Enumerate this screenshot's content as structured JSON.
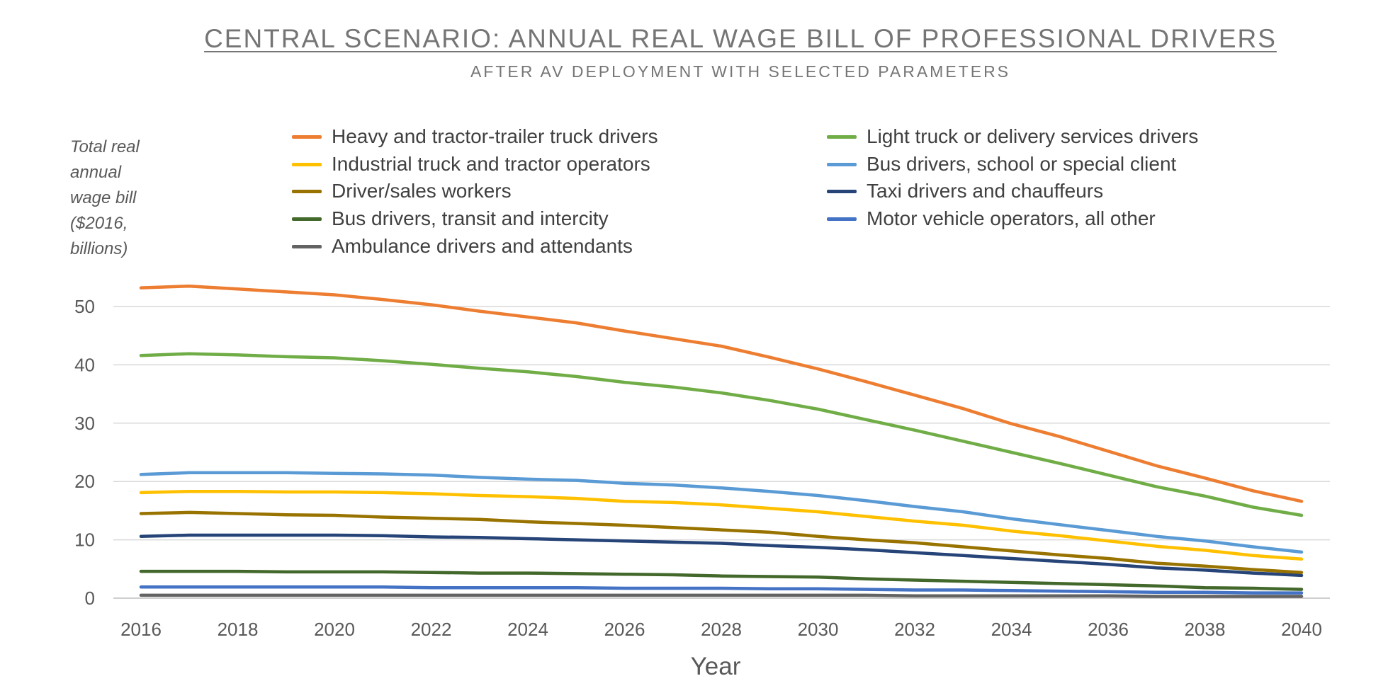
{
  "chart_data": {
    "type": "line",
    "title": "CENTRAL SCENARIO: ANNUAL REAL WAGE BILL OF PROFESSIONAL DRIVERS",
    "subtitle": "AFTER AV DEPLOYMENT WITH SELECTED PARAMETERS",
    "ylabel": "Total real annual wage bill ($2016, billions)",
    "xlabel": "Year",
    "x": [
      2016,
      2017,
      2018,
      2019,
      2020,
      2021,
      2022,
      2023,
      2024,
      2025,
      2026,
      2027,
      2028,
      2029,
      2030,
      2031,
      2032,
      2033,
      2034,
      2035,
      2036,
      2037,
      2038,
      2039,
      2040
    ],
    "x_ticks": [
      "2016",
      "2018",
      "2020",
      "2022",
      "2024",
      "2026",
      "2028",
      "2030",
      "2032",
      "2034",
      "2036",
      "2038",
      "2040"
    ],
    "y_ticks": [
      "0",
      "10",
      "20",
      "30",
      "40",
      "50"
    ],
    "ylim": [
      0,
      50
    ],
    "grid": "horizontal",
    "legend_position": "top",
    "series": [
      {
        "name": "Heavy and tractor-trailer truck drivers",
        "color": "#ED7D31",
        "values": [
          53.2,
          53.5,
          53.0,
          52.5,
          52.0,
          51.2,
          50.3,
          49.2,
          48.2,
          47.2,
          45.8,
          44.5,
          43.2,
          41.3,
          39.3,
          37.1,
          34.8,
          32.5,
          29.9,
          27.7,
          25.2,
          22.7,
          20.6,
          18.4,
          16.6
        ]
      },
      {
        "name": "Light truck or delivery services drivers",
        "color": "#70AD47",
        "values": [
          41.6,
          41.9,
          41.7,
          41.4,
          41.2,
          40.7,
          40.1,
          39.4,
          38.8,
          38.0,
          37.0,
          36.2,
          35.2,
          33.9,
          32.4,
          30.6,
          28.8,
          26.9,
          25.0,
          23.1,
          21.1,
          19.1,
          17.5,
          15.6,
          14.2
        ]
      },
      {
        "name": "Industrial truck and tractor operators",
        "color": "#FFC000",
        "values": [
          18.1,
          18.3,
          18.3,
          18.2,
          18.2,
          18.1,
          17.9,
          17.6,
          17.4,
          17.1,
          16.6,
          16.4,
          16.0,
          15.4,
          14.8,
          14.0,
          13.2,
          12.5,
          11.5,
          10.7,
          9.8,
          8.9,
          8.2,
          7.3,
          6.7
        ]
      },
      {
        "name": "Bus drivers, school or special client",
        "color": "#5B9BD5",
        "values": [
          21.2,
          21.5,
          21.5,
          21.5,
          21.4,
          21.3,
          21.1,
          20.7,
          20.4,
          20.2,
          19.7,
          19.4,
          18.9,
          18.3,
          17.6,
          16.7,
          15.7,
          14.8,
          13.6,
          12.6,
          11.6,
          10.6,
          9.8,
          8.8,
          7.9
        ]
      },
      {
        "name": "Driver/sales workers",
        "color": "#997300",
        "values": [
          14.5,
          14.7,
          14.5,
          14.3,
          14.2,
          13.9,
          13.7,
          13.5,
          13.1,
          12.8,
          12.5,
          12.1,
          11.7,
          11.3,
          10.6,
          10.0,
          9.5,
          8.8,
          8.1,
          7.4,
          6.8,
          6.0,
          5.5,
          4.9,
          4.4
        ]
      },
      {
        "name": "Taxi drivers and chauffeurs",
        "color": "#264478",
        "values": [
          10.6,
          10.8,
          10.8,
          10.8,
          10.8,
          10.7,
          10.5,
          10.4,
          10.2,
          10.0,
          9.8,
          9.6,
          9.4,
          9.0,
          8.7,
          8.3,
          7.8,
          7.3,
          6.8,
          6.3,
          5.8,
          5.2,
          4.8,
          4.3,
          3.9
        ]
      },
      {
        "name": "Bus drivers, transit and intercity",
        "color": "#43682B",
        "values": [
          4.6,
          4.6,
          4.6,
          4.5,
          4.5,
          4.5,
          4.4,
          4.3,
          4.3,
          4.2,
          4.1,
          4.0,
          3.8,
          3.7,
          3.6,
          3.3,
          3.1,
          2.9,
          2.7,
          2.5,
          2.3,
          2.1,
          1.8,
          1.7,
          1.5
        ]
      },
      {
        "name": "Motor vehicle operators, all other",
        "color": "#4472C4",
        "values": [
          1.9,
          1.9,
          1.9,
          1.9,
          1.9,
          1.9,
          1.8,
          1.8,
          1.8,
          1.8,
          1.7,
          1.7,
          1.7,
          1.6,
          1.6,
          1.5,
          1.4,
          1.4,
          1.3,
          1.2,
          1.1,
          1.0,
          1.0,
          0.9,
          0.9
        ]
      },
      {
        "name": "Ambulance drivers and attendants",
        "color": "#636363",
        "values": [
          0.5,
          0.5,
          0.5,
          0.5,
          0.5,
          0.5,
          0.5,
          0.5,
          0.5,
          0.5,
          0.5,
          0.5,
          0.5,
          0.5,
          0.5,
          0.5,
          0.4,
          0.4,
          0.4,
          0.4,
          0.4,
          0.3,
          0.3,
          0.3,
          0.3
        ]
      }
    ]
  }
}
